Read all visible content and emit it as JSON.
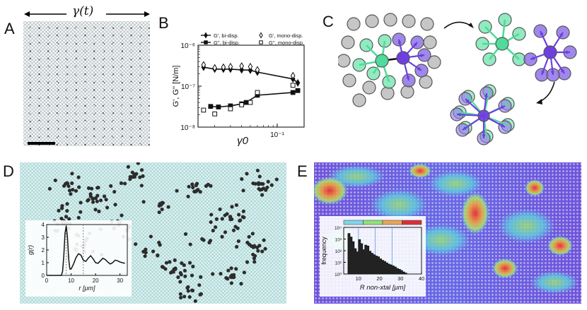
{
  "panels": {
    "A": {
      "label": "A",
      "shear_label": "γ(t)"
    },
    "B": {
      "label": "B"
    },
    "C": {
      "label": "C"
    },
    "D": {
      "label": "D"
    },
    "E": {
      "label": "E"
    }
  },
  "chart_data": [
    {
      "type": "scatter",
      "panel": "B",
      "xscale": "log",
      "yscale": "log",
      "xlabel": "γ0",
      "ylabel": "G', G'' [N/m]",
      "xlim": [
        0.013,
        0.2
      ],
      "ylim": [
        1e-08,
        1e-06
      ],
      "x_tick_labels": [
        "10⁻¹"
      ],
      "y_tick_labels": [
        "10⁻⁶",
        "10⁻⁷",
        "10⁻⁸"
      ],
      "legend": [
        "G', bi-disp.",
        "G'', bi-disp.",
        "G', mono-disp.",
        "G'', mono-disp."
      ],
      "series": [
        {
          "name": "G', bi-disp.",
          "style": "filled diamond with line",
          "x": [
            0.015,
            0.02,
            0.025,
            0.03,
            0.04,
            0.05,
            0.06,
            0.15,
            0.17
          ],
          "values": [
            2.9e-07,
            2.6e-07,
            2.6e-07,
            2.6e-07,
            2.5e-07,
            2.45e-07,
            2.2e-07,
            1.5e-07,
            1.2e-07
          ]
        },
        {
          "name": "G'', bi-disp.",
          "style": "filled square with line",
          "x": [
            0.018,
            0.022,
            0.03,
            0.04,
            0.045,
            0.06,
            0.15,
            0.17
          ],
          "values": [
            3.2e-08,
            3.1e-08,
            3.3e-08,
            3.7e-08,
            4e-08,
            6e-08,
            7e-08,
            7.8e-08
          ]
        },
        {
          "name": "G', mono-disp.",
          "style": "open diamond",
          "x": [
            0.015,
            0.02,
            0.025,
            0.03,
            0.04,
            0.05,
            0.06,
            0.15
          ],
          "values": [
            3.3e-07,
            2.8e-07,
            2.9e-07,
            3e-07,
            3.1e-07,
            3e-07,
            2.5e-07,
            1.8e-07
          ]
        },
        {
          "name": "G'', mono-disp.",
          "style": "open square",
          "x": [
            0.015,
            0.02,
            0.03,
            0.04,
            0.05,
            0.06,
            0.15
          ],
          "values": [
            2.6e-08,
            2.1e-08,
            2.8e-08,
            3.5e-08,
            4e-08,
            7e-08,
            1.05e-07
          ]
        }
      ]
    },
    {
      "type": "line",
      "panel": "D inset",
      "xlabel": "r [μm]",
      "ylabel": "g(r)",
      "xlim": [
        0,
        33
      ],
      "ylim": [
        0,
        4
      ],
      "x_tick_labels": [
        "0",
        "10",
        "20",
        "30"
      ],
      "y_tick_labels": [
        "0",
        "1",
        "2",
        "3",
        "4"
      ],
      "dashed_vlines": [
        8,
        15
      ],
      "x": [
        0,
        5,
        6,
        6.5,
        7,
        7.5,
        8,
        8.5,
        9,
        9.5,
        10,
        11,
        12,
        13,
        14,
        15,
        16,
        17,
        18,
        19,
        20,
        21,
        22,
        23,
        24,
        25,
        26,
        27,
        28,
        29,
        30,
        31,
        32
      ],
      "values": [
        0,
        0,
        0,
        0.3,
        1.5,
        3.3,
        3.9,
        3.0,
        1.3,
        0.5,
        0.5,
        0.9,
        1.4,
        1.7,
        1.6,
        1.2,
        1.1,
        1.35,
        1.55,
        1.3,
        1.0,
        0.95,
        1.15,
        1.35,
        1.25,
        1.05,
        0.9,
        1.0,
        1.2,
        1.15,
        1.05,
        1.0,
        0.95
      ]
    },
    {
      "type": "line",
      "panel": "E inset",
      "yscale": "log",
      "xlabel": "R non-xtal [μm]",
      "ylabel": "frequency",
      "xlim": [
        3,
        40
      ],
      "ylim": [
        1,
        10000
      ],
      "x_tick_labels": [
        "10",
        "20",
        "30",
        "40"
      ],
      "y_tick_labels": [
        "10⁰",
        "10¹",
        "10²",
        "10³",
        "10⁴"
      ],
      "color_bar": [
        "#7fd6e8",
        "#8fe17a",
        "#e8a55a",
        "#d9303a"
      ],
      "vlines": [
        10,
        18,
        26
      ],
      "x": [
        5,
        6,
        7,
        8,
        9,
        10,
        11,
        12,
        13,
        14,
        15,
        16,
        17,
        18,
        19,
        20,
        21,
        22,
        23,
        24,
        25,
        26,
        27,
        28,
        29,
        30,
        31,
        32
      ],
      "values": [
        3000,
        1500,
        600,
        150,
        80,
        900,
        400,
        120,
        300,
        250,
        90,
        60,
        45,
        35,
        30,
        20,
        15,
        12,
        9,
        7,
        6,
        5,
        4,
        3,
        2.5,
        2,
        1.5,
        1.2
      ]
    }
  ]
}
